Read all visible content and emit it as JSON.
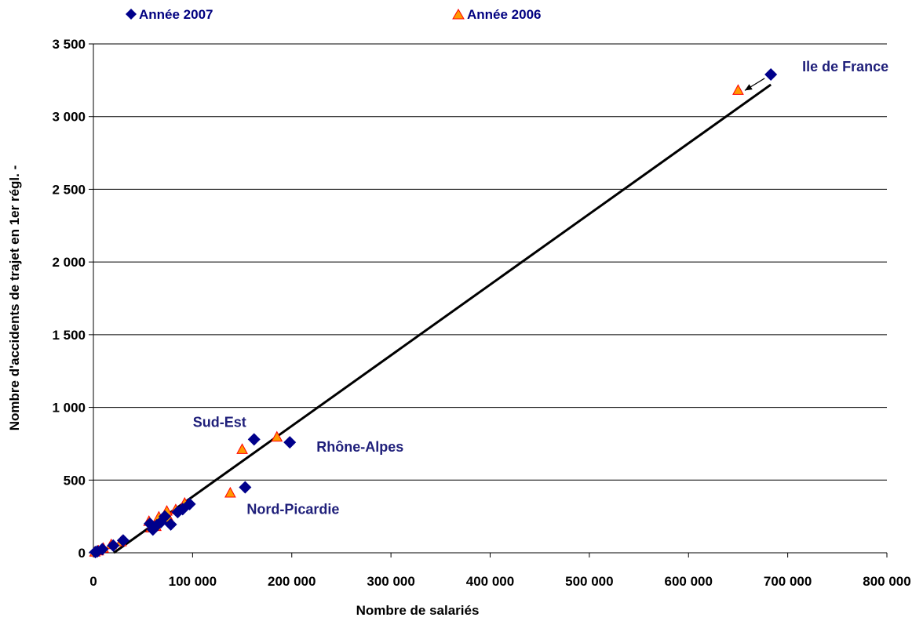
{
  "chart_data": {
    "type": "scatter",
    "xlabel": "Nombre de salariés",
    "ylabel": "Nombre d'accidents de trajet en 1er régl. -",
    "xlim": [
      0,
      800000
    ],
    "ylim": [
      0,
      3500
    ],
    "x_ticks": [
      0,
      100000,
      200000,
      300000,
      400000,
      500000,
      600000,
      700000,
      800000
    ],
    "x_tick_labels": [
      "0",
      "100 000",
      "200 000",
      "300 000",
      "400 000",
      "500 000",
      "600 000",
      "700 000",
      "800 000"
    ],
    "y_ticks": [
      0,
      500,
      1000,
      1500,
      2000,
      2500,
      3000,
      3500
    ],
    "y_tick_labels": [
      "0",
      "500",
      "1 000",
      "1 500",
      "2 000",
      "2 500",
      "3 000",
      "3 500"
    ],
    "grid": "horizontal",
    "legend_position": "top",
    "series": [
      {
        "name": "Année 2007",
        "marker": "diamond",
        "color": "#00008b",
        "points": [
          {
            "x": 683000,
            "y": 3290
          },
          {
            "x": 162000,
            "y": 780
          },
          {
            "x": 198000,
            "y": 760
          },
          {
            "x": 153000,
            "y": 450
          },
          {
            "x": 97000,
            "y": 335
          },
          {
            "x": 90000,
            "y": 300
          },
          {
            "x": 85000,
            "y": 280
          },
          {
            "x": 78000,
            "y": 195
          },
          {
            "x": 72000,
            "y": 250
          },
          {
            "x": 68000,
            "y": 210
          },
          {
            "x": 64000,
            "y": 190
          },
          {
            "x": 60000,
            "y": 160
          },
          {
            "x": 57000,
            "y": 200
          },
          {
            "x": 30000,
            "y": 85
          },
          {
            "x": 20000,
            "y": 50
          },
          {
            "x": 9000,
            "y": 25
          },
          {
            "x": 4000,
            "y": 10
          },
          {
            "x": 2000,
            "y": 5
          }
        ]
      },
      {
        "name": "Année 2006",
        "marker": "triangle",
        "color": "#ff9900",
        "edge_color": "#ff0000",
        "points": [
          {
            "x": 650000,
            "y": 3180
          },
          {
            "x": 185000,
            "y": 795
          },
          {
            "x": 150000,
            "y": 710
          },
          {
            "x": 138000,
            "y": 410
          },
          {
            "x": 92000,
            "y": 340
          },
          {
            "x": 83000,
            "y": 295
          },
          {
            "x": 76000,
            "y": 235
          },
          {
            "x": 74000,
            "y": 285
          },
          {
            "x": 66000,
            "y": 245
          },
          {
            "x": 63000,
            "y": 180
          },
          {
            "x": 58000,
            "y": 170
          },
          {
            "x": 56000,
            "y": 215
          },
          {
            "x": 28000,
            "y": 75
          },
          {
            "x": 18000,
            "y": 55
          },
          {
            "x": 10000,
            "y": 30
          },
          {
            "x": 5000,
            "y": 12
          },
          {
            "x": 1500,
            "y": 4
          }
        ]
      }
    ],
    "trendline": {
      "x": [
        0,
        683000
      ],
      "y": [
        -100,
        3220
      ]
    },
    "annotations": [
      {
        "text": "Ile de France",
        "x": 683000,
        "y": 3290,
        "anchor": "right-above",
        "arrow_to": {
          "x": 652000,
          "y": 3185
        }
      },
      {
        "text": "Sud-Est",
        "x": 162000,
        "y": 780,
        "anchor": "left-above"
      },
      {
        "text": "Rhône-Alpes",
        "x": 198000,
        "y": 760,
        "anchor": "right"
      },
      {
        "text": "Nord-Picardie",
        "x": 153000,
        "y": 450,
        "anchor": "below-right"
      }
    ]
  }
}
